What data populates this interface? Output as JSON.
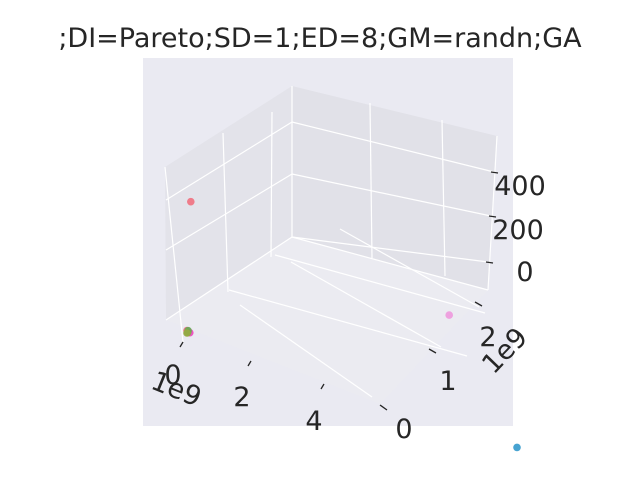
{
  "chart_data": {
    "type": "scatter",
    "projection": "3d",
    "title": ";DI=Pareto;SD=1;ED=8;GM=randn;GA",
    "x_axis": {
      "ticks": [
        "0",
        "2",
        "4"
      ],
      "offset_label": "1e9"
    },
    "y_axis": {
      "ticks": [
        "0",
        "1",
        "2"
      ],
      "offset_label": "1e9"
    },
    "z_axis": {
      "ticks": [
        "0",
        "200",
        "400"
      ]
    },
    "grid": true,
    "pane_color": "#eaeaf2",
    "points": [
      {
        "x": 0.02,
        "y": 0.05,
        "z": 430,
        "color": "#f0707f"
      },
      {
        "x": 4.6,
        "y": 0.0,
        "z": 420,
        "color": "#ee99dd"
      },
      {
        "x": 5.6,
        "y": 0.2,
        "z": 20,
        "color": "#3399cc"
      },
      {
        "x": 0.05,
        "y": 0.0,
        "z": 5,
        "color": "#ee44bb"
      },
      {
        "x": 0.0,
        "y": 0.0,
        "z": 8,
        "color": "#f0707f"
      },
      {
        "x": 0.0,
        "y": 0.02,
        "z": 4,
        "color": "#66aa55"
      },
      {
        "x": 0.01,
        "y": 0.0,
        "z": 2,
        "color": "#66aa55"
      },
      {
        "x": 0.0,
        "y": 0.0,
        "z": 0,
        "color": "#99aa44"
      }
    ]
  }
}
